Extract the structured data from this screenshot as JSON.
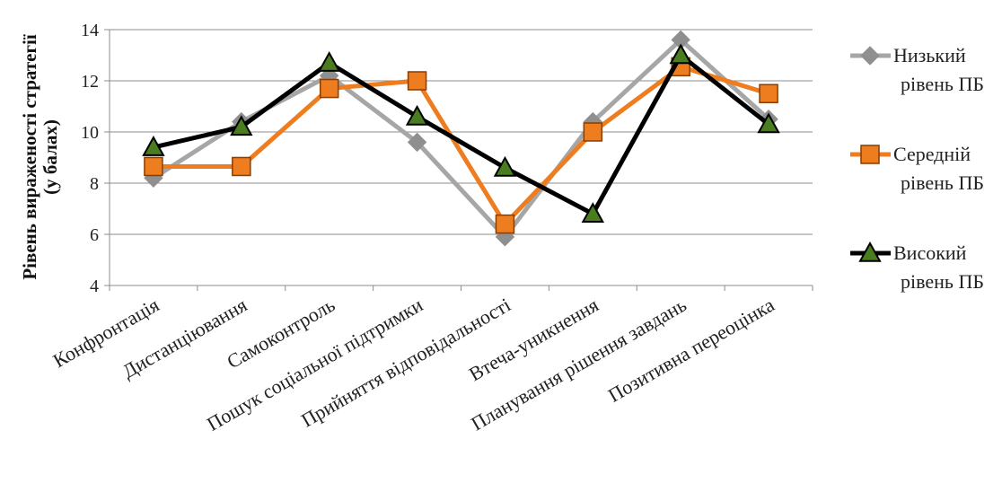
{
  "header": {
    "text": ""
  },
  "chart_data": {
    "type": "line",
    "title": "",
    "ylabel_line1": "Рівень вираженості стратегії",
    "ylabel_line2": "(у балах)",
    "xlabel": "",
    "ylim": [
      4,
      14
    ],
    "yticks": [
      4,
      6,
      8,
      10,
      12,
      14
    ],
    "grid": true,
    "legend_position": "right",
    "categories": [
      "Конфронтація",
      "Дистанціювання",
      "Самоконтроль",
      "Пошук соціальної підтримки",
      "Прийняття відповідальності",
      "Втеча-уникнення",
      "Планування рішення завдань",
      "Позитивна переоцінка"
    ],
    "series": [
      {
        "name_line1": "Низький",
        "name_line2": "рівень ПБ",
        "color": "#a6a6a6",
        "marker": "diamond",
        "values": [
          8.2,
          10.4,
          12.2,
          9.6,
          5.9,
          10.4,
          13.6,
          10.5
        ]
      },
      {
        "name_line1": "Середній",
        "name_line2": "рівень ПБ",
        "color": "#ee7d1f",
        "marker": "square",
        "values": [
          8.65,
          8.65,
          11.7,
          12.0,
          6.4,
          10.0,
          12.55,
          11.5
        ]
      },
      {
        "name_line1": "Високий",
        "name_line2": "рівень ПБ",
        "color": "#000000",
        "marker": "triangle",
        "values": [
          9.4,
          10.2,
          12.7,
          10.6,
          8.6,
          6.8,
          13.0,
          10.3
        ]
      }
    ]
  }
}
